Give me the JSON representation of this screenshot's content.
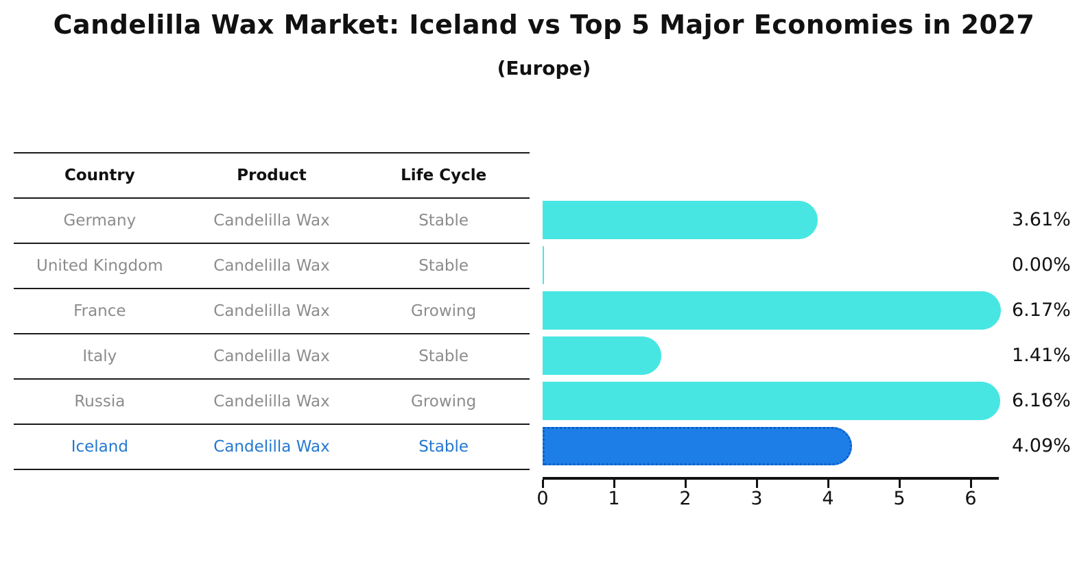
{
  "title": "Candelilla Wax Market: Iceland vs Top 5 Major Economies in 2027",
  "subtitle": "(Europe)",
  "table": {
    "headers": [
      "Country",
      "Product",
      "Life Cycle"
    ],
    "rows": [
      {
        "country": "Germany",
        "product": "Candelilla Wax",
        "life_cycle": "Stable",
        "highlight": false
      },
      {
        "country": "United Kingdom",
        "product": "Candelilla Wax",
        "life_cycle": "Stable",
        "highlight": false
      },
      {
        "country": "France",
        "product": "Candelilla Wax",
        "life_cycle": "Growing",
        "highlight": false
      },
      {
        "country": "Italy",
        "product": "Candelilla Wax",
        "life_cycle": "Stable",
        "highlight": false
      },
      {
        "country": "Russia",
        "product": "Candelilla Wax",
        "life_cycle": "Growing",
        "highlight": false
      },
      {
        "country": "Iceland",
        "product": "Candelilla Wax",
        "life_cycle": "Stable",
        "highlight": true
      }
    ]
  },
  "chart_data": {
    "type": "bar",
    "orientation": "horizontal",
    "title": "Candelilla Wax Market: Iceland vs Top 5 Major Economies in 2027",
    "subtitle": "(Europe)",
    "categories": [
      "Germany",
      "United Kingdom",
      "France",
      "Italy",
      "Russia",
      "Iceland"
    ],
    "values": [
      3.61,
      0.0,
      6.17,
      1.41,
      6.16,
      4.09
    ],
    "value_labels": [
      "3.61%",
      "0.00%",
      "6.17%",
      "1.41%",
      "6.16%",
      "4.09%"
    ],
    "x_ticks": [
      "0",
      "1",
      "2",
      "3",
      "4",
      "5",
      "6"
    ],
    "xlim": [
      0,
      6.4
    ],
    "grid": false,
    "legend": false,
    "bar_color": "#48e6e3",
    "highlight_index": 5,
    "highlight_bar_color": "#1e7ee8",
    "highlight_border_color": "#0d5ec9",
    "highlight_text_color": "#2478d0",
    "axis_color": "#111111"
  }
}
